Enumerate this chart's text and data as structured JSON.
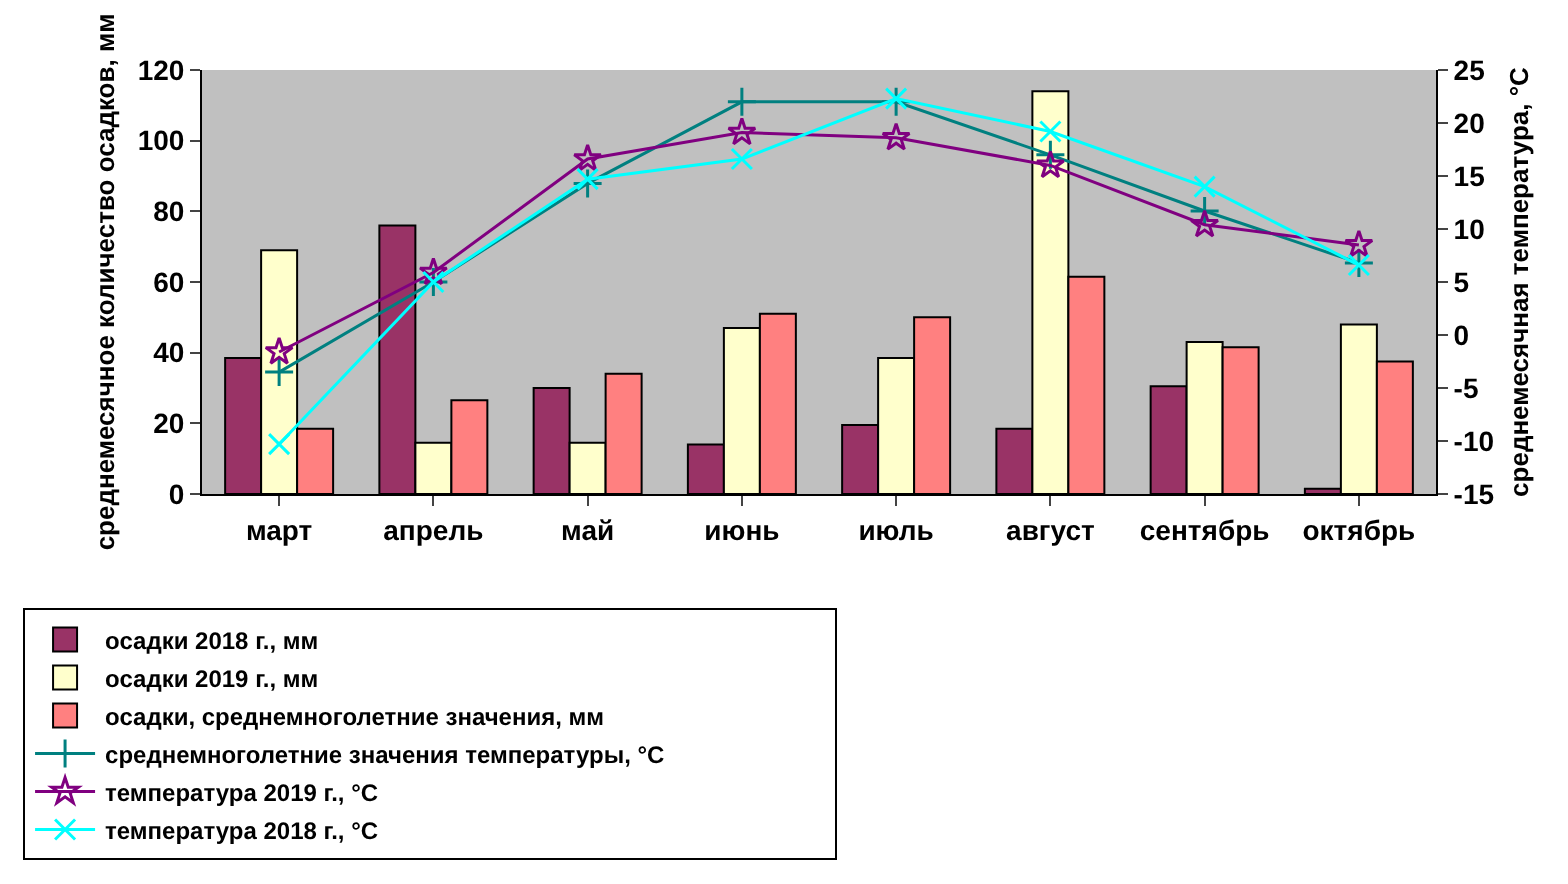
{
  "chart_data": {
    "type": "bar",
    "categories": [
      "март",
      "апрель",
      "май",
      "июнь",
      "июль",
      "август",
      "сентябрь",
      "октябрь"
    ],
    "ylabel": "среднемесячное количество осадков, мм",
    "y2label": "среднемесячная температура, °С",
    "ylim": [
      0,
      120
    ],
    "yticks": [
      0,
      20,
      40,
      60,
      80,
      100,
      120
    ],
    "y2lim": [
      -15,
      25
    ],
    "y2ticks": [
      -15,
      -10,
      -5,
      0,
      5,
      10,
      15,
      20,
      25
    ],
    "grid": false,
    "legend": "bottom",
    "series": [
      {
        "name": "осадки 2018 г., мм",
        "color": "#993366",
        "values": [
          38.5,
          76,
          30,
          14,
          19.5,
          18.5,
          30.5,
          1.5
        ]
      },
      {
        "name": "осадки 2019 г., мм",
        "color": "#ffffcc",
        "values": [
          69,
          14.5,
          14.5,
          47,
          38.5,
          114,
          43,
          48
        ]
      },
      {
        "name": "осадки, среднемноголетние значения, мм",
        "color": "#ff8080",
        "values": [
          18.5,
          26.5,
          34,
          51,
          50,
          61.5,
          41.5,
          37.5
        ]
      },
      {
        "name": "среднемноголетние значения температуры, °С",
        "type": "line",
        "axis": "y2",
        "marker": "cross",
        "color": "#008080",
        "values": [
          -3.5,
          5,
          14.3,
          22,
          22,
          17,
          11.7,
          6.8
        ]
      },
      {
        "name": "температура 2019 г., °С",
        "type": "line",
        "axis": "y2",
        "marker": "star",
        "color": "#800080",
        "values": [
          -1.6,
          5.9,
          16.6,
          19.1,
          18.6,
          16,
          10.4,
          8.5
        ]
      },
      {
        "name": "температура 2018 г., °С",
        "type": "line",
        "axis": "y2",
        "marker": "x",
        "color": "#00ffff",
        "values": [
          -10.3,
          5,
          14.7,
          16.6,
          22.3,
          19.2,
          14,
          6.6
        ]
      }
    ]
  }
}
